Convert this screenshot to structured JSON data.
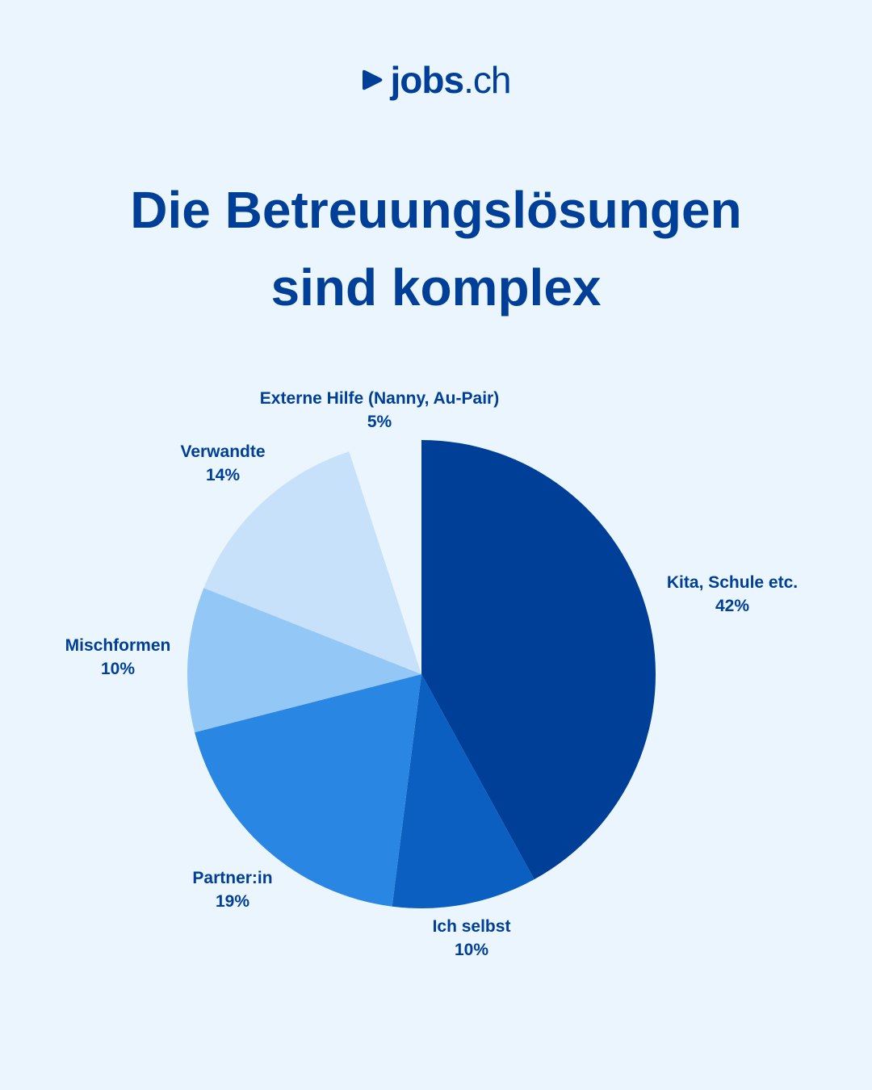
{
  "brand": {
    "name_bold": "jobs",
    "name_suffix": ".ch",
    "mark_icon": "play-triangle-icon",
    "color": "#003f97"
  },
  "title": {
    "line1": "Die Betreuungslösungen",
    "line2": "sind komplex"
  },
  "colors": {
    "background": "#eaf5fd",
    "text": "#003f97"
  },
  "chart_data": {
    "type": "pie",
    "start": "12 o'clock",
    "direction": "clockwise",
    "slices": [
      {
        "label": "Kita, Schule etc.",
        "value": 42,
        "value_label": "42%",
        "color": "#003f97"
      },
      {
        "label": "Ich selbst",
        "value": 10,
        "value_label": "10%",
        "color": "#0b5fc1"
      },
      {
        "label": "Partner:in",
        "value": 19,
        "value_label": "19%",
        "color": "#2a86e3"
      },
      {
        "label": "Mischformen",
        "value": 10,
        "value_label": "10%",
        "color": "#93c7f5"
      },
      {
        "label": "Verwandte",
        "value": 14,
        "value_label": "14%",
        "color": "#c6e1f9"
      },
      {
        "label": "Externe Hilfe (Nanny, Au-Pair)",
        "value": 5,
        "value_label": "5%",
        "color": "#eaf5fd"
      }
    ]
  }
}
